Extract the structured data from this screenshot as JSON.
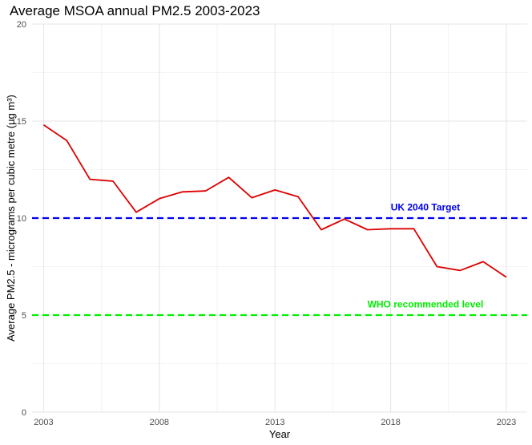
{
  "chart_data": {
    "type": "line",
    "title": "Average MSOA annual PM2.5 2003-2023",
    "xlabel": "Year",
    "ylabel": "Average PM2.5 - micrograms per cubic metre (µg m³)",
    "xlim": [
      2002.5,
      2023.9
    ],
    "ylim": [
      0,
      20
    ],
    "x_ticks": [
      2003,
      2008,
      2013,
      2018,
      2023
    ],
    "y_ticks": [
      0,
      5,
      10,
      15,
      20
    ],
    "grid": true,
    "series": [
      {
        "color": "#dd0000",
        "x": [
          2003,
          2004,
          2005,
          2006,
          2007,
          2008,
          2009,
          2010,
          2011,
          2012,
          2013,
          2014,
          2015,
          2016,
          2017,
          2018,
          2019,
          2020,
          2021,
          2022,
          2023
        ],
        "y": [
          14.8,
          14.0,
          12.0,
          11.9,
          10.3,
          11.0,
          11.35,
          11.4,
          12.1,
          11.05,
          11.45,
          11.1,
          9.4,
          9.95,
          9.4,
          9.45,
          9.45,
          7.5,
          7.3,
          7.75,
          6.95
        ]
      }
    ],
    "reference_lines": [
      {
        "y": 10,
        "label": "UK 2040 Target",
        "color": "#0000ee",
        "label_x": 2019.5,
        "label_y": 10.4
      },
      {
        "y": 5,
        "label": "WHO recommended level",
        "color": "#00ee00",
        "label_x": 2019.5,
        "label_y": 5.4
      }
    ]
  }
}
